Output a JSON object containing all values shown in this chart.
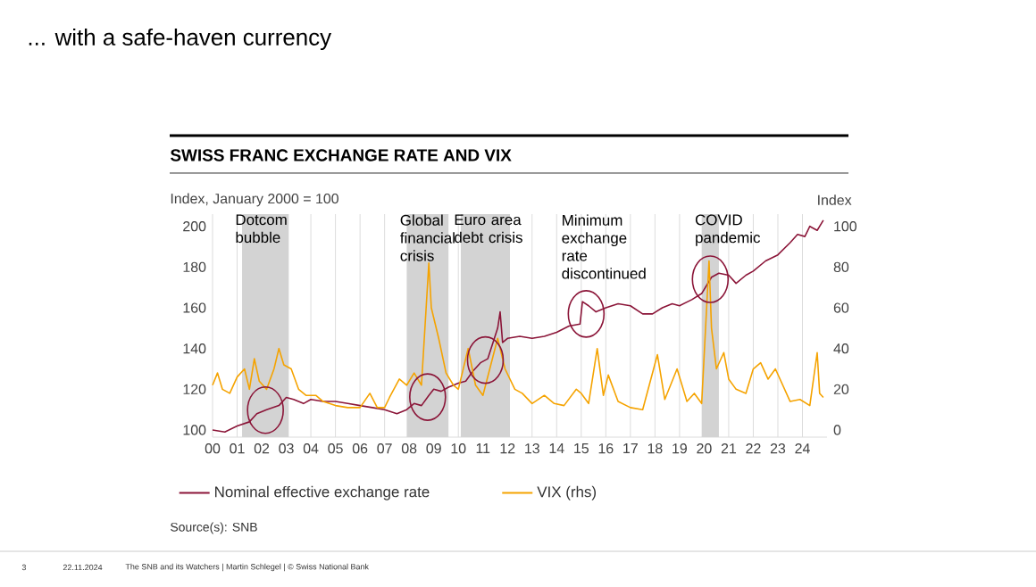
{
  "chart_data": {
    "type": "line",
    "title": "SWISS FRANC EXCHANGE RATE AND VIX",
    "ylabel": "Index, January 2000 = 100",
    "y2label": "Index",
    "xlim": [
      2000,
      2025
    ],
    "xticks": [
      {
        "value": 2000,
        "label": "00"
      },
      {
        "value": 2001,
        "label": "01"
      },
      {
        "value": 2002,
        "label": "02"
      },
      {
        "value": 2003,
        "label": "03"
      },
      {
        "value": 2004,
        "label": "04"
      },
      {
        "value": 2005,
        "label": "05"
      },
      {
        "value": 2006,
        "label": "06"
      },
      {
        "value": 2007,
        "label": "07"
      },
      {
        "value": 2008,
        "label": "08"
      },
      {
        "value": 2009,
        "label": "09"
      },
      {
        "value": 2010,
        "label": "10"
      },
      {
        "value": 2011,
        "label": "11"
      },
      {
        "value": 2012,
        "label": "12"
      },
      {
        "value": 2013,
        "label": "13"
      },
      {
        "value": 2014,
        "label": "14"
      },
      {
        "value": 2015,
        "label": "15"
      },
      {
        "value": 2016,
        "label": "16"
      },
      {
        "value": 2017,
        "label": "17"
      },
      {
        "value": 2018,
        "label": "18"
      },
      {
        "value": 2019,
        "label": "19"
      },
      {
        "value": 2020,
        "label": "20"
      },
      {
        "value": 2021,
        "label": "21"
      },
      {
        "value": 2022,
        "label": "22"
      },
      {
        "value": 2023,
        "label": "23"
      },
      {
        "value": 2024,
        "label": "24"
      }
    ],
    "ylim": [
      96.5,
      206
    ],
    "yticks": [
      100,
      120,
      140,
      160,
      180,
      200
    ],
    "y2lim": [
      -3.5,
      106
    ],
    "y2ticks": [
      0,
      20,
      40,
      60,
      80,
      100
    ],
    "grid": "x",
    "legend": "bottom",
    "series": [
      {
        "name": "Nominal effective exchange rate",
        "color": "#8b1538",
        "x": [
          2000.0,
          2000.5,
          2001.0,
          2001.5,
          2001.8,
          2002.2,
          2002.7,
          2003.0,
          2003.3,
          2003.7,
          2004.0,
          2004.5,
          2005.0,
          2005.5,
          2006.0,
          2006.5,
          2007.0,
          2007.5,
          2007.9,
          2008.2,
          2008.5,
          2008.8,
          2009.0,
          2009.3,
          2009.6,
          2010.0,
          2010.3,
          2010.6,
          2010.9,
          2011.2,
          2011.6,
          2011.7,
          2011.8,
          2012.0,
          2012.5,
          2013.0,
          2013.5,
          2014.0,
          2014.5,
          2014.95,
          2015.05,
          2015.3,
          2015.6,
          2016.0,
          2016.5,
          2017.0,
          2017.5,
          2017.9,
          2018.3,
          2018.7,
          2019.0,
          2019.5,
          2019.9,
          2020.3,
          2020.6,
          2021.0,
          2021.3,
          2021.7,
          2022.0,
          2022.5,
          2023.0,
          2023.5,
          2023.8,
          2024.1,
          2024.3,
          2024.6,
          2024.85
        ],
        "values": [
          100,
          99,
          102,
          104,
          108,
          110,
          112,
          116,
          115,
          113,
          115,
          114,
          114,
          113,
          112,
          111,
          110,
          108,
          110,
          113,
          112,
          117,
          120,
          119,
          121,
          123,
          124,
          129,
          133,
          135,
          150,
          158,
          143,
          145,
          146,
          145,
          146,
          148,
          151,
          152,
          163,
          161,
          158,
          160,
          162,
          161,
          157,
          157,
          160,
          162,
          161,
          164,
          167,
          175,
          177,
          176,
          172,
          176,
          178,
          183,
          186,
          192,
          196,
          195,
          200,
          198,
          203
        ]
      },
      {
        "name": "VIX (rhs)",
        "color": "#f5a300",
        "axis": "y2",
        "x": [
          2000.0,
          2000.2,
          2000.4,
          2000.7,
          2001.0,
          2001.3,
          2001.5,
          2001.7,
          2001.9,
          2002.2,
          2002.5,
          2002.7,
          2002.9,
          2003.2,
          2003.5,
          2003.8,
          2004.2,
          2004.5,
          2005.0,
          2005.5,
          2006.0,
          2006.4,
          2006.7,
          2007.0,
          2007.2,
          2007.6,
          2007.9,
          2008.2,
          2008.5,
          2008.8,
          2008.9,
          2009.2,
          2009.5,
          2009.8,
          2010.0,
          2010.4,
          2010.7,
          2011.0,
          2011.6,
          2011.9,
          2012.3,
          2012.6,
          2013.0,
          2013.5,
          2013.9,
          2014.3,
          2014.8,
          2015.0,
          2015.3,
          2015.65,
          2015.9,
          2016.1,
          2016.5,
          2017.0,
          2017.5,
          2018.1,
          2018.4,
          2018.9,
          2019.3,
          2019.6,
          2019.9,
          2020.2,
          2020.3,
          2020.5,
          2020.8,
          2021.0,
          2021.3,
          2021.7,
          2022.0,
          2022.3,
          2022.6,
          2022.9,
          2023.2,
          2023.5,
          2023.9,
          2024.3,
          2024.6,
          2024.7,
          2024.85
        ],
        "values": [
          22,
          28,
          20,
          18,
          26,
          30,
          20,
          35,
          24,
          20,
          30,
          40,
          32,
          30,
          20,
          17,
          17,
          14,
          12,
          11,
          11,
          18,
          11,
          11,
          16,
          25,
          22,
          28,
          22,
          82,
          60,
          45,
          28,
          22,
          20,
          40,
          22,
          17,
          45,
          30,
          20,
          18,
          13,
          17,
          13,
          12,
          20,
          18,
          13,
          40,
          17,
          27,
          14,
          11,
          10,
          37,
          15,
          30,
          14,
          18,
          13,
          83,
          50,
          30,
          38,
          25,
          20,
          18,
          30,
          33,
          25,
          30,
          22,
          14,
          15,
          12,
          38,
          18,
          16
        ]
      }
    ],
    "bands": [
      {
        "axis": "x",
        "from": 2001.2,
        "to": 2003.1,
        "color": "#d3d3d3",
        "label": "Dotcom bubble"
      },
      {
        "axis": "x",
        "from": 2007.9,
        "to": 2009.6,
        "color": "#d3d3d3",
        "label": "Global financial crisis"
      },
      {
        "axis": "x",
        "from": 2010.1,
        "to": 2012.1,
        "color": "#d3d3d3",
        "label": "Euro area debt crisis"
      },
      {
        "axis": "x",
        "from": 2019.9,
        "to": 2020.6,
        "color": "#d3d3d3",
        "label": "COVID pandemic"
      }
    ],
    "annotations": [
      "... with a safe-haven currency",
      "Source(s): SNB",
      "3",
      "22.11.2024",
      "The SNB and its Watchers | Martin Schlegel | © Swiss National Bank",
      {
        "text": "Minimum exchange rate discontinued",
        "x": 2015.2,
        "y": 157
      }
    ]
  }
}
